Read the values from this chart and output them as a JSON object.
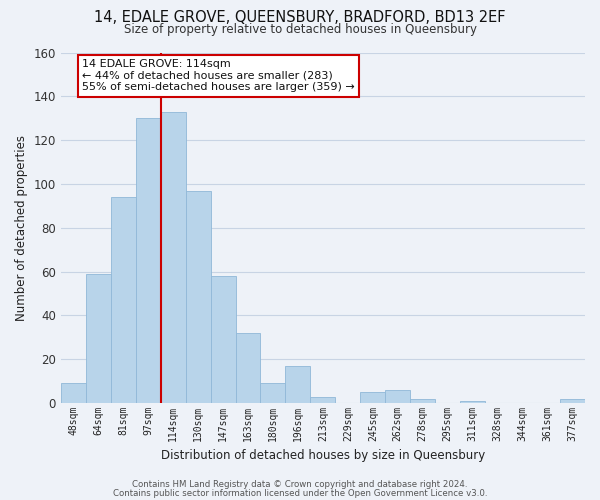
{
  "title": "14, EDALE GROVE, QUEENSBURY, BRADFORD, BD13 2EF",
  "subtitle": "Size of property relative to detached houses in Queensbury",
  "xlabel": "Distribution of detached houses by size in Queensbury",
  "ylabel": "Number of detached properties",
  "bar_labels": [
    "48sqm",
    "64sqm",
    "81sqm",
    "97sqm",
    "114sqm",
    "130sqm",
    "147sqm",
    "163sqm",
    "180sqm",
    "196sqm",
    "213sqm",
    "229sqm",
    "245sqm",
    "262sqm",
    "278sqm",
    "295sqm",
    "311sqm",
    "328sqm",
    "344sqm",
    "361sqm",
    "377sqm"
  ],
  "bar_values": [
    9,
    59,
    94,
    130,
    133,
    97,
    58,
    32,
    9,
    17,
    3,
    0,
    5,
    6,
    2,
    0,
    1,
    0,
    0,
    0,
    2
  ],
  "bar_color": "#b8d4ea",
  "bar_edge_color": "#90b8d8",
  "vline_x_index": 4,
  "vline_color": "#cc0000",
  "annotation_text": "14 EDALE GROVE: 114sqm\n← 44% of detached houses are smaller (283)\n55% of semi-detached houses are larger (359) →",
  "annotation_box_color": "#ffffff",
  "annotation_box_edge": "#cc0000",
  "ylim": [
    0,
    160
  ],
  "yticks": [
    0,
    20,
    40,
    60,
    80,
    100,
    120,
    140,
    160
  ],
  "grid_color": "#c8d4e4",
  "background_color": "#eef2f8",
  "footer1": "Contains HM Land Registry data © Crown copyright and database right 2024.",
  "footer2": "Contains public sector information licensed under the Open Government Licence v3.0."
}
